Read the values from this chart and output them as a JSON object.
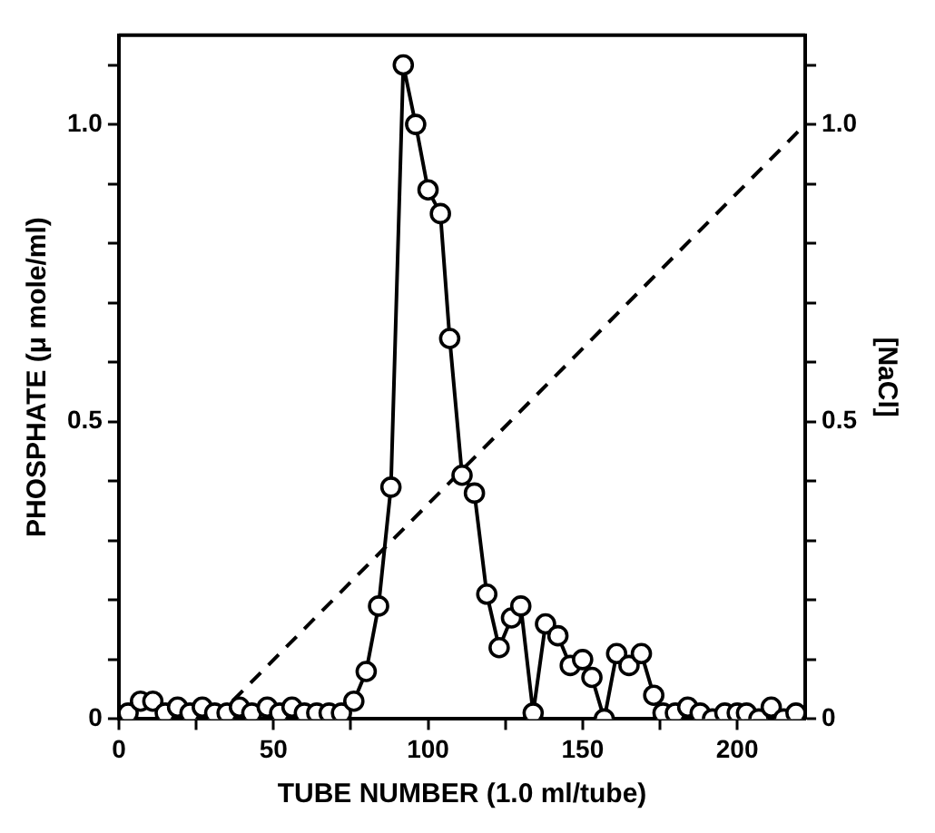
{
  "chart_data": {
    "type": "line",
    "xlabel": "TUBE NUMBER (1.0 ml/tube)",
    "ylabel": "PHOSPHATE (μ mole/ml)",
    "y2label": "[NaCl]",
    "xlim": [
      0,
      222
    ],
    "xticks": [
      0,
      {
        "value": 25,
        "label": null
      },
      50,
      {
        "value": 75,
        "label": null
      },
      100,
      {
        "value": 125,
        "label": null
      },
      150,
      {
        "value": 175,
        "label": null
      },
      200
    ],
    "ylim": [
      0,
      1.15
    ],
    "yticks": [
      0,
      {
        "value": 0.1,
        "label": null
      },
      {
        "value": 0.2,
        "label": null
      },
      {
        "value": 0.3,
        "label": null
      },
      {
        "value": 0.4,
        "label": null
      },
      {
        "value": 0.5,
        "label": "0.5"
      },
      {
        "value": 0.6,
        "label": null
      },
      {
        "value": 0.7,
        "label": null
      },
      {
        "value": 0.8,
        "label": null
      },
      {
        "value": 0.9,
        "label": null
      },
      {
        "value": 1,
        "label": "1.0"
      },
      {
        "value": 1.1,
        "label": null
      }
    ],
    "y2lim": [
      0,
      1.15
    ],
    "y2ticks": [
      0,
      {
        "value": 0.1,
        "label": null
      },
      {
        "value": 0.2,
        "label": null
      },
      {
        "value": 0.3,
        "label": null
      },
      {
        "value": 0.4,
        "label": null
      },
      {
        "value": 0.5,
        "label": "0.5"
      },
      {
        "value": 0.6,
        "label": null
      },
      {
        "value": 0.7,
        "label": null
      },
      {
        "value": 0.8,
        "label": null
      },
      {
        "value": 0.9,
        "label": null
      },
      {
        "value": 1,
        "label": "1.0"
      },
      {
        "value": 1.1,
        "label": null
      }
    ],
    "grid": false,
    "legend": false,
    "series": [
      {
        "color": "#000000",
        "marker": "circle",
        "line_style": "solid",
        "x": [
          3,
          7,
          11,
          15,
          19,
          23,
          27,
          31,
          35,
          39,
          43,
          48,
          52,
          56,
          60,
          64,
          68,
          72,
          76,
          80,
          84,
          88,
          92,
          96,
          100,
          104,
          107,
          111,
          115,
          119,
          123,
          127,
          130,
          134,
          138,
          142,
          146,
          150,
          153,
          157,
          161,
          165,
          169,
          173,
          176,
          180,
          184,
          188,
          192,
          196,
          200,
          203,
          207,
          211,
          215,
          219
        ],
        "values": [
          0.01,
          0.03,
          0.03,
          0.01,
          0.02,
          0.01,
          0.02,
          0.01,
          0.01,
          0.02,
          0.01,
          0.02,
          0.01,
          0.02,
          0.01,
          0.01,
          0.01,
          0.01,
          0.03,
          0.08,
          0.19,
          0.39,
          1.1,
          1.0,
          0.89,
          0.85,
          0.64,
          0.41,
          0.38,
          0.21,
          0.12,
          0.17,
          0.19,
          0.01,
          0.16,
          0.14,
          0.09,
          0.1,
          0.07,
          0.0,
          0.11,
          0.09,
          0.11,
          0.04,
          0.01,
          0.01,
          0.02,
          0.01,
          0.0,
          0.01,
          0.01,
          0.01,
          0.0,
          0.02,
          0.0,
          0.01
        ]
      },
      {
        "color": "#000000",
        "marker": "none",
        "line_style": "dashed",
        "axis": "y2",
        "x": [
          31,
          222
        ],
        "values": [
          0,
          1.0
        ]
      }
    ]
  }
}
